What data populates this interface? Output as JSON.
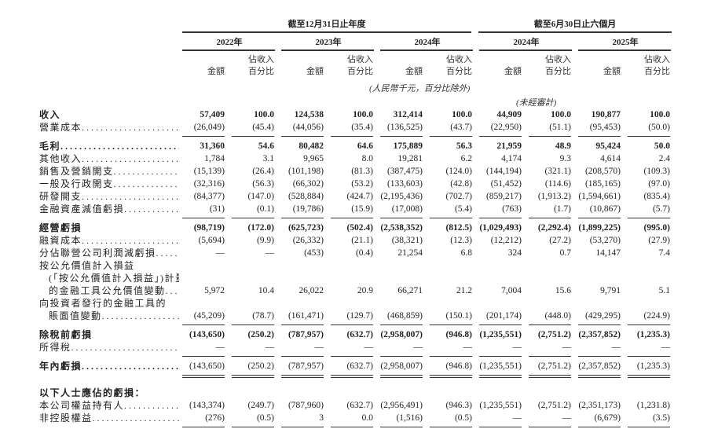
{
  "header": {
    "period_full_year": "截至12月31日止年度",
    "period_half_year": "截至6月30日止六個月",
    "years": [
      "2022年",
      "2023年",
      "2024年",
      "2024年",
      "2025年"
    ],
    "amount_label": "金額",
    "pct_label_line1": "佔收入",
    "pct_label_line2": "百分比",
    "unit_note": "(人民幣千元，百分比除外)",
    "unaudited_note": "(未經審計)"
  },
  "rows": [
    {
      "label": "收入",
      "bold": true,
      "dots": false,
      "values": [
        "57,409",
        "100.0",
        "124,538",
        "100.0",
        "312,414",
        "100.0",
        "44,909",
        "100.0",
        "190,877",
        "100.0"
      ]
    },
    {
      "label": "營業成本",
      "values": [
        "(26,049)",
        "(45.4)",
        "(44,056)",
        "(35.4)",
        "(136,525)",
        "(43.7)",
        "(22,950)",
        "(51.1)",
        "(95,453)",
        "(50.0)"
      ],
      "line": "single"
    },
    {
      "label": "毛利",
      "bold": true,
      "values": [
        "31,360",
        "54.6",
        "80,482",
        "64.6",
        "175,889",
        "56.3",
        "21,959",
        "48.9",
        "95,424",
        "50.0"
      ]
    },
    {
      "label": "其他收入",
      "values": [
        "1,784",
        "3.1",
        "9,965",
        "8.0",
        "19,281",
        "6.2",
        "4,174",
        "9.3",
        "4,614",
        "2.4"
      ]
    },
    {
      "label": "銷售及營銷開支",
      "values": [
        "(15,139)",
        "(26.4)",
        "(101,198)",
        "(81.3)",
        "(387,475)",
        "(124.0)",
        "(144,194)",
        "(321.1)",
        "(208,570)",
        "(109.3)"
      ]
    },
    {
      "label": "一般及行政開支",
      "values": [
        "(32,316)",
        "(56.3)",
        "(66,302)",
        "(53.2)",
        "(133,603)",
        "(42.8)",
        "(51,452)",
        "(114.6)",
        "(185,165)",
        "(97.0)"
      ]
    },
    {
      "label": "研發開支",
      "values": [
        "(84,377)",
        "(147.0)",
        "(528,884)",
        "(424.7)",
        "(2,195,436)",
        "(702.7)",
        "(859,217)",
        "(1,913.2)",
        "(1,594,661)",
        "(835.4)"
      ]
    },
    {
      "label": "金融資產減值虧損",
      "values": [
        "(31)",
        "(0.1)",
        "(19,786)",
        "(15.9)",
        "(17,008)",
        "(5.4)",
        "(763)",
        "(1.7)",
        "(10,867)",
        "(5.7)"
      ],
      "line": "single"
    },
    {
      "label": "經營虧損",
      "bold": true,
      "dots": false,
      "values": [
        "(98,719)",
        "(172.0)",
        "(625,723)",
        "(502.4)",
        "(2,538,352)",
        "(812.5)",
        "(1,029,493)",
        "(2,292.4)",
        "(1,899,225)",
        "(995.0)"
      ]
    },
    {
      "label": "融資成本",
      "values": [
        "(5,694)",
        "(9.9)",
        "(26,332)",
        "(21.1)",
        "(38,321)",
        "(12.3)",
        "(12,212)",
        "(27.2)",
        "(53,270)",
        "(27.9)"
      ]
    },
    {
      "label": "分佔聯營公司利潤減虧損",
      "values": [
        "—",
        "—",
        "(453)",
        "(0.4)",
        "21,254",
        "6.8",
        "324",
        "0.7",
        "14,147",
        "7.4"
      ]
    },
    {
      "label": "按公允價值計入損益",
      "dots": false,
      "values": []
    },
    {
      "label": "(「按公允價值計入損益」)計量",
      "indent": true,
      "dots": false,
      "values": []
    },
    {
      "label": "的金融工具公允價值變動",
      "indent": true,
      "values": [
        "5,972",
        "10.4",
        "26,022",
        "20.9",
        "66,271",
        "21.2",
        "7,004",
        "15.6",
        "9,791",
        "5.1"
      ]
    },
    {
      "label": "向投資者發行的金融工具的",
      "dots": false,
      "values": []
    },
    {
      "label": "賬面值變動",
      "indent": true,
      "values": [
        "(45,209)",
        "(78.7)",
        "(161,471)",
        "(129.7)",
        "(468,859)",
        "(150.1)",
        "(201,174)",
        "(448.0)",
        "(429,295)",
        "(224.9)"
      ],
      "line": "single"
    },
    {
      "label": "除稅前虧損",
      "bold": true,
      "dots": false,
      "values": [
        "(143,650)",
        "(250.2)",
        "(787,957)",
        "(632.7)",
        "(2,958,007)",
        "(946.8)",
        "(1,235,551)",
        "(2,751.2)",
        "(2,357,852)",
        "(1,235.3)"
      ]
    },
    {
      "label": "所得稅",
      "values": [
        "—",
        "—",
        "—",
        "—",
        "—",
        "—",
        "—",
        "—",
        "—",
        "—"
      ],
      "line": "single"
    },
    {
      "label": "年內虧損",
      "bold": true,
      "valuesBold": false,
      "values": [
        "(143,650)",
        "(250.2)",
        "(787,957)",
        "(632.7)",
        "(2,958,007)",
        "(946.8)",
        "(1,235,551)",
        "(2,751.2)",
        "(2,357,852)",
        "(1,235.3)"
      ],
      "line": "double"
    },
    {
      "label": "以下人士應佔的虧損：",
      "bold": true,
      "dots": false,
      "values": [],
      "gap": true
    },
    {
      "label": "本公司權益持有人",
      "values": [
        "(143,374)",
        "(249.7)",
        "(787,960)",
        "(632.7)",
        "(2,956,491)",
        "(946.3)",
        "(1,235,551)",
        "(2,751.2)",
        "(2,351,173)",
        "(1,231.8)"
      ]
    },
    {
      "label": "非控股權益",
      "values": [
        "(276)",
        "(0.5)",
        "3",
        "0.0",
        "(1,516)",
        "(0.5)",
        "—",
        "—",
        "(6,679)",
        "(3.5)"
      ],
      "line": "single"
    }
  ]
}
